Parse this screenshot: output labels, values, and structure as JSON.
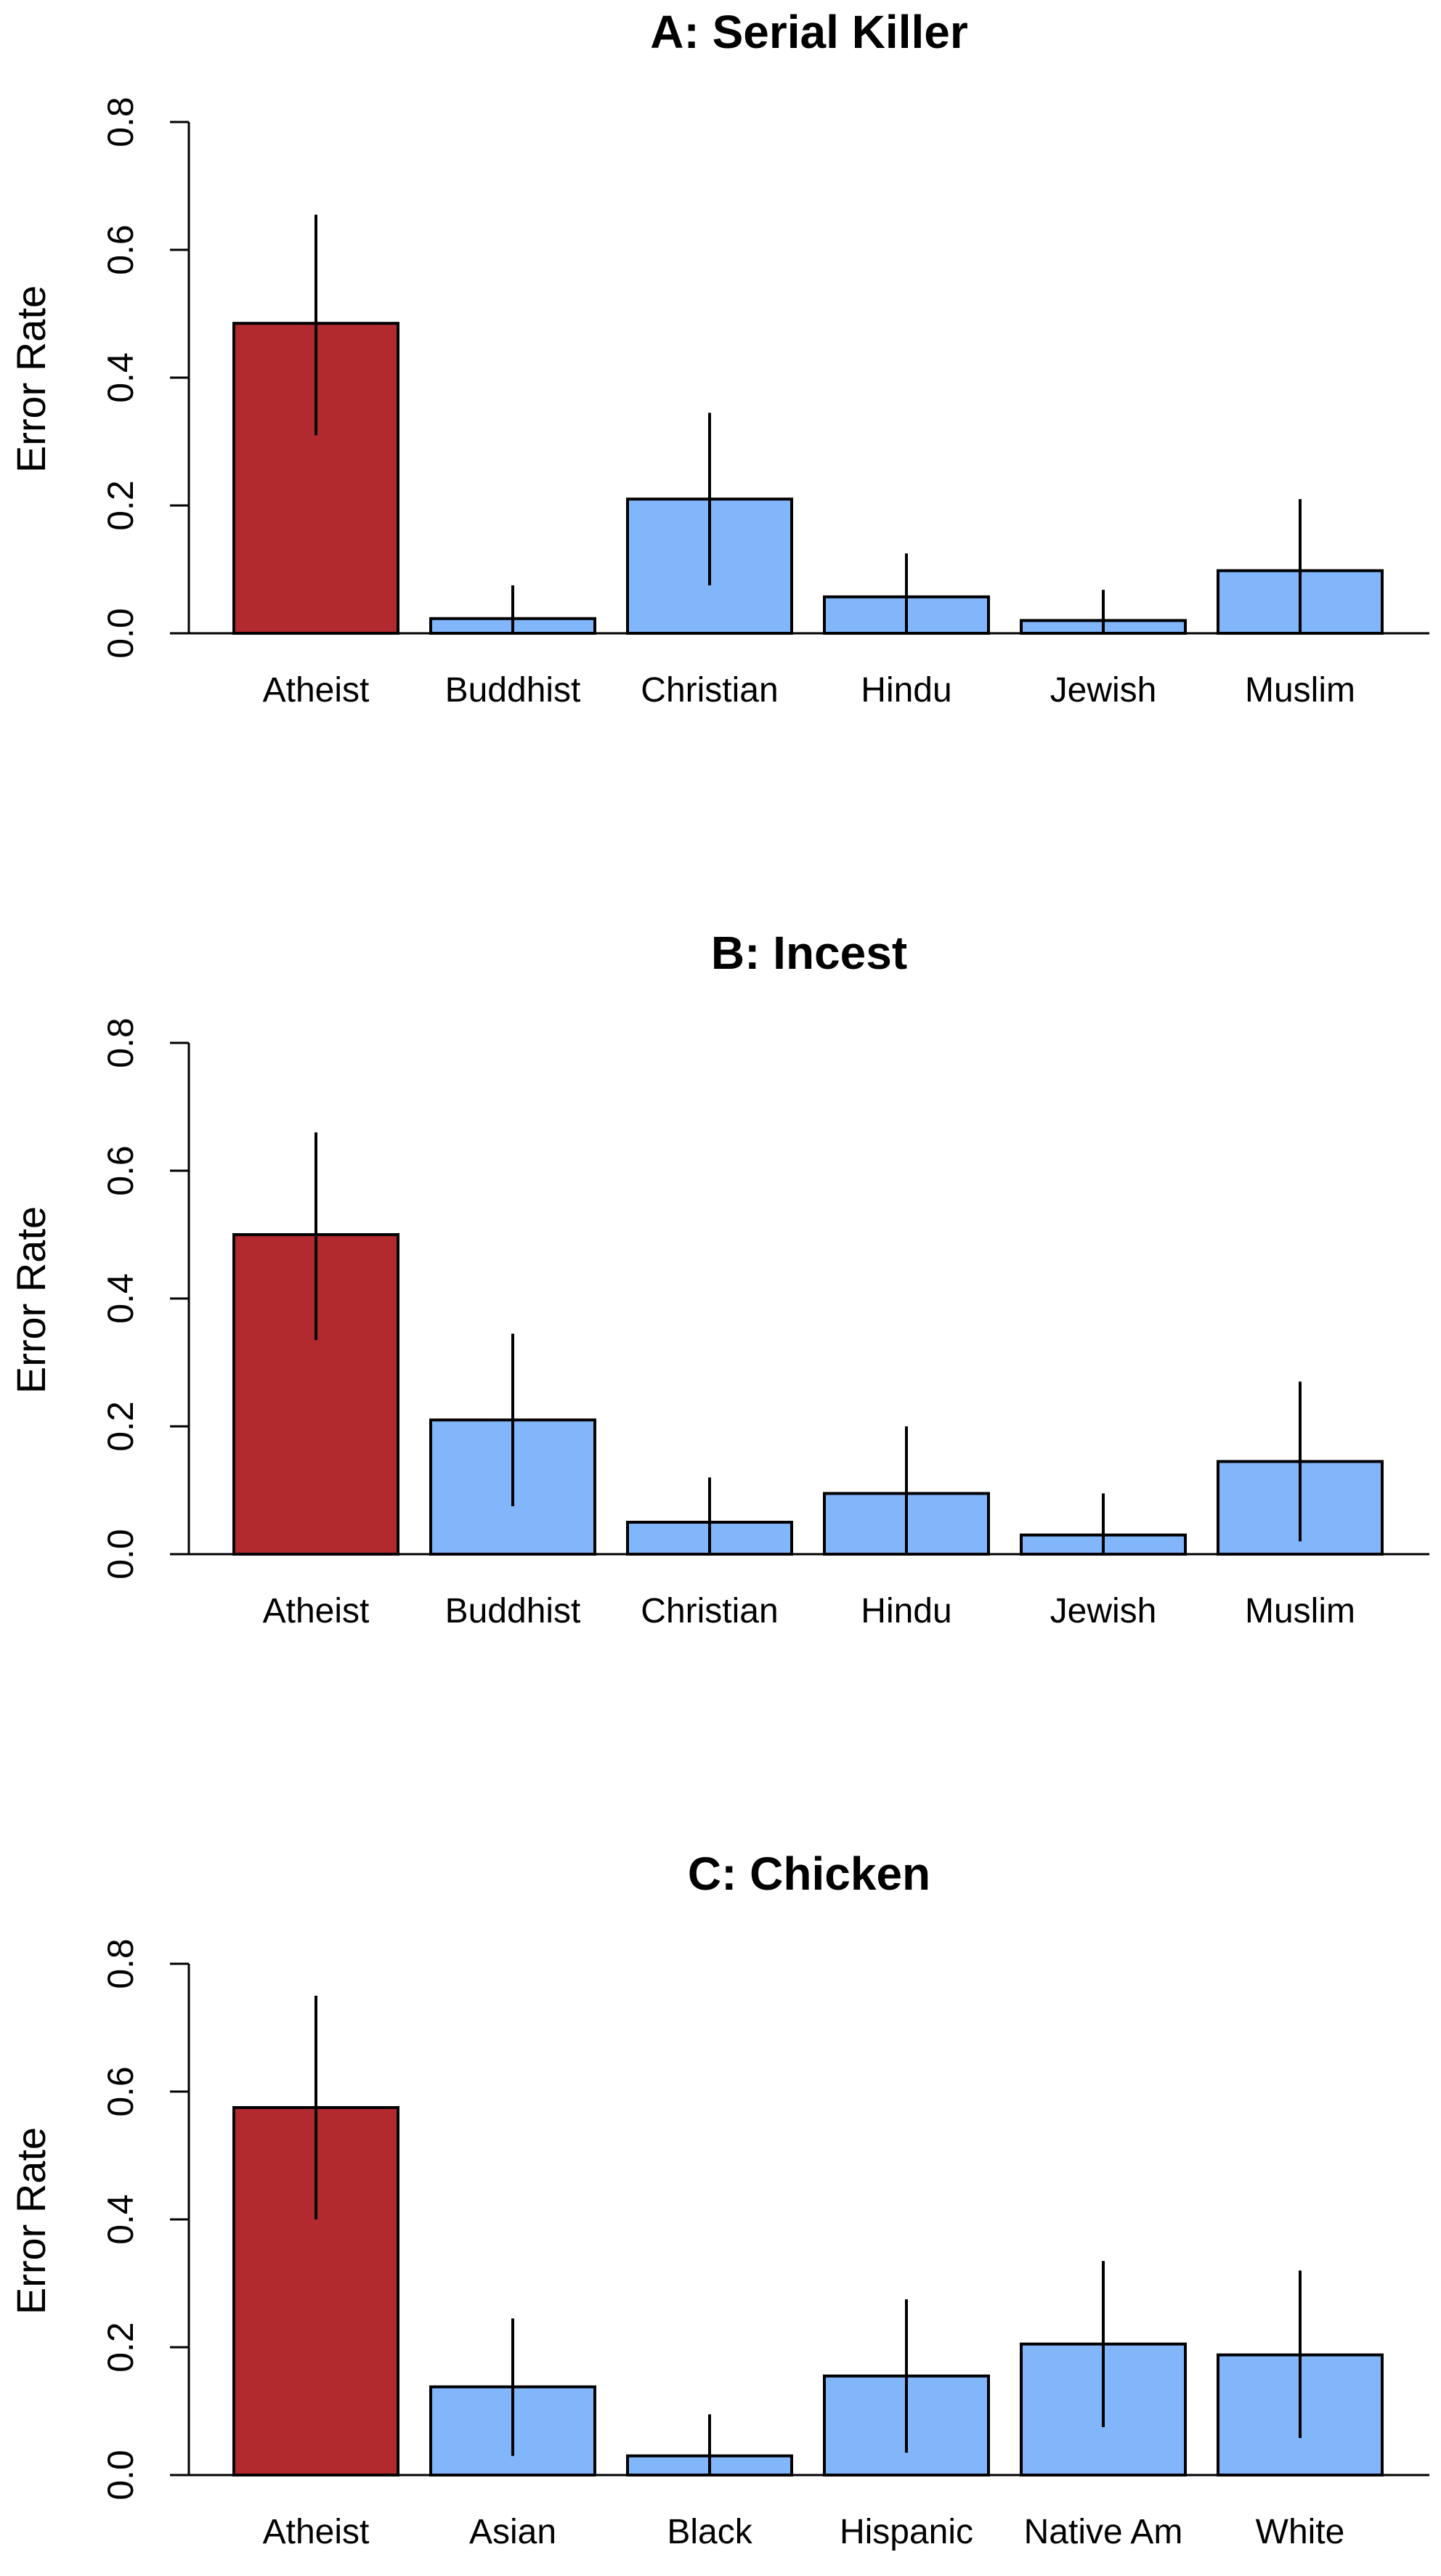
{
  "chart_data": [
    {
      "type": "bar",
      "title": "A: Serial Killer",
      "ylabel": "Error Rate",
      "xlabel": "",
      "ylim": [
        0,
        0.8
      ],
      "yticks": [
        "0.0",
        "0.2",
        "0.4",
        "0.6",
        "0.8"
      ],
      "categories": [
        "Atheist",
        "Buddhist",
        "Christian",
        "Hindu",
        "Jewish",
        "Muslim"
      ],
      "values": [
        0.485,
        0.023,
        0.21,
        0.057,
        0.02,
        0.098
      ],
      "error_low": [
        0.31,
        0.0,
        0.075,
        0.0,
        0.0,
        0.0
      ],
      "error_high": [
        0.655,
        0.075,
        0.345,
        0.125,
        0.068,
        0.21
      ],
      "colors": [
        "#b2292e",
        "#82b6fb",
        "#82b6fb",
        "#82b6fb",
        "#82b6fb",
        "#82b6fb"
      ],
      "grid": false
    },
    {
      "type": "bar",
      "title": "B: Incest",
      "ylabel": "Error Rate",
      "xlabel": "",
      "ylim": [
        0,
        0.8
      ],
      "yticks": [
        "0.0",
        "0.2",
        "0.4",
        "0.6",
        "0.8"
      ],
      "categories": [
        "Atheist",
        "Buddhist",
        "Christian",
        "Hindu",
        "Jewish",
        "Muslim"
      ],
      "values": [
        0.5,
        0.21,
        0.05,
        0.095,
        0.03,
        0.145
      ],
      "error_low": [
        0.335,
        0.075,
        0.0,
        0.0,
        0.0,
        0.02
      ],
      "error_high": [
        0.66,
        0.345,
        0.12,
        0.2,
        0.095,
        0.27
      ],
      "colors": [
        "#b2292e",
        "#82b6fb",
        "#82b6fb",
        "#82b6fb",
        "#82b6fb",
        "#82b6fb"
      ],
      "grid": false
    },
    {
      "type": "bar",
      "title": "C: Chicken",
      "ylabel": "Error Rate",
      "xlabel": "",
      "ylim": [
        0,
        0.8
      ],
      "yticks": [
        "0.0",
        "0.2",
        "0.4",
        "0.6",
        "0.8"
      ],
      "categories": [
        "Atheist",
        "Asian",
        "Black",
        "Hispanic",
        "Native Am",
        "White"
      ],
      "values": [
        0.575,
        0.138,
        0.03,
        0.155,
        0.205,
        0.188
      ],
      "error_low": [
        0.4,
        0.03,
        0.0,
        0.035,
        0.075,
        0.058
      ],
      "error_high": [
        0.75,
        0.245,
        0.095,
        0.275,
        0.335,
        0.32
      ],
      "colors": [
        "#b2292e",
        "#82b6fb",
        "#82b6fb",
        "#82b6fb",
        "#82b6fb",
        "#82b6fb"
      ],
      "grid": false
    }
  ]
}
